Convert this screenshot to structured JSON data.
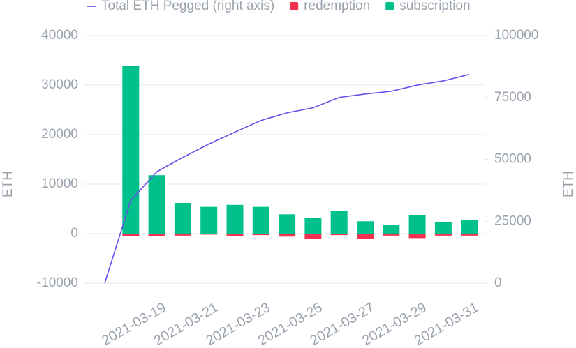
{
  "chart_data": {
    "type": "bar",
    "y_label": "ETH",
    "y2_label": "ETH",
    "categories": [
      null,
      null,
      "2021-03-19",
      null,
      "2021-03-21",
      null,
      "2021-03-23",
      null,
      "2021-03-25",
      null,
      "2021-03-27",
      null,
      "2021-03-29",
      null,
      "2021-03-31"
    ],
    "series": [
      {
        "name": "Total ETH Pegged (right axis)",
        "type": "line",
        "axis": "y2",
        "color": "#6a4ce8",
        "values": [
          0,
          33400,
          45000,
          50800,
          56200,
          61000,
          65700,
          68800,
          70800,
          75000,
          76400,
          77500,
          80000,
          81700,
          84300
        ]
      },
      {
        "name": "redemption",
        "type": "bar",
        "color": "#f2304f",
        "values": [
          0,
          -500,
          -500,
          -400,
          -200,
          -500,
          -300,
          -600,
          -1100,
          -300,
          -1000,
          -400,
          -900,
          -400,
          -400
        ]
      },
      {
        "name": "subscription",
        "type": "bar",
        "color": "#00c08b",
        "values": [
          0,
          33800,
          11800,
          6200,
          5400,
          5800,
          5400,
          3900,
          3100,
          4600,
          2500,
          1700,
          3800,
          2400,
          2800
        ]
      }
    ],
    "ylim": [
      -10000,
      40000
    ],
    "yticks": [
      -10000,
      0,
      10000,
      20000,
      30000,
      40000
    ],
    "y2lim": [
      0,
      100000
    ],
    "y2ticks": [
      0,
      25000,
      50000,
      75000,
      100000
    ],
    "grid": true,
    "legend": "top"
  }
}
